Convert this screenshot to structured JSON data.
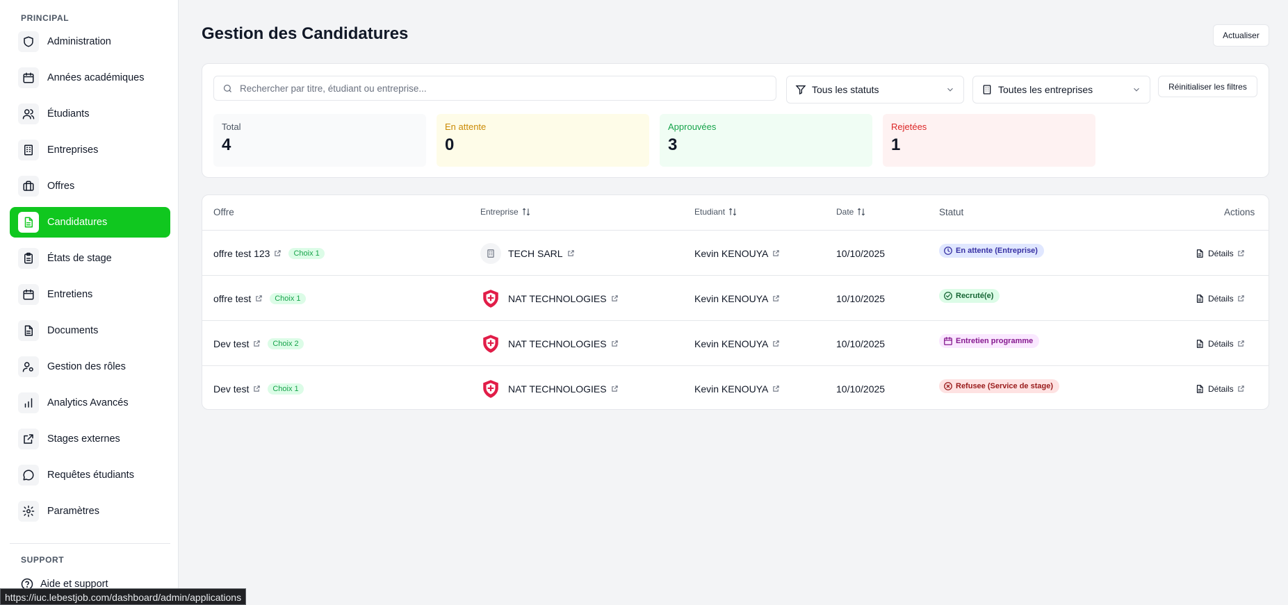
{
  "sidebar": {
    "principal_label": "PRINCIPAL",
    "items": [
      {
        "label": "Administration",
        "icon": "shield-icon",
        "active": false
      },
      {
        "label": "Années académiques",
        "icon": "calendar-icon",
        "active": false
      },
      {
        "label": "Étudiants",
        "icon": "users-icon",
        "active": false
      },
      {
        "label": "Entreprises",
        "icon": "building-icon",
        "active": false
      },
      {
        "label": "Offres",
        "icon": "briefcase-icon",
        "active": false
      },
      {
        "label": "Candidatures",
        "icon": "file-text-icon",
        "active": true
      },
      {
        "label": "États de stage",
        "icon": "clipboard-icon",
        "active": false
      },
      {
        "label": "Entretiens",
        "icon": "calendar-icon",
        "active": false
      },
      {
        "label": "Documents",
        "icon": "document-icon",
        "active": false
      },
      {
        "label": "Gestion des rôles",
        "icon": "user-cog-icon",
        "active": false
      },
      {
        "label": "Analytics Avancés",
        "icon": "bar-chart-icon",
        "active": false
      },
      {
        "label": "Stages externes",
        "icon": "external-link-icon",
        "active": false
      },
      {
        "label": "Requêtes étudiants",
        "icon": "message-circle-icon",
        "active": false
      },
      {
        "label": "Paramètres",
        "icon": "gear-icon",
        "active": false
      }
    ],
    "support_label": "SUPPORT",
    "support_item": "Aide et support"
  },
  "header": {
    "title": "Gestion des Candidatures",
    "refresh_label": "Actualiser"
  },
  "filters": {
    "search_placeholder": "Rechercher par titre, étudiant ou entreprise...",
    "status_select": "Tous les statuts",
    "company_select": "Toutes les entreprises",
    "reset_label": "Réinitialiser les filtres"
  },
  "stats": [
    {
      "label": "Total",
      "value": "4",
      "color": "#4b5563",
      "bg": "#f9fafb"
    },
    {
      "label": "En attente",
      "value": "0",
      "color": "#ca8a04",
      "bg": "#fefce8"
    },
    {
      "label": "Approuvées",
      "value": "3",
      "color": "#16a34a",
      "bg": "#f0fdf4"
    },
    {
      "label": "Rejetées",
      "value": "1",
      "color": "#dc2626",
      "bg": "#fef2f2"
    }
  ],
  "table": {
    "headers": {
      "offre": "Offre",
      "entreprise": "Entreprise",
      "etudiant": "Etudiant",
      "date": "Date",
      "statut": "Statut",
      "actions": "Actions"
    },
    "rows": [
      {
        "offre": "offre test 123",
        "choix": "Choix 1",
        "entreprise": "TECH SARL",
        "logo": "building-logo",
        "etudiant": "Kevin KENOUYA",
        "date": "10/10/2025",
        "statut": "En attente (Entreprise)",
        "statut_icon": "clock-icon",
        "statut_color": "#3730a3",
        "statut_bg": "#e0e7ff",
        "details": "Détails"
      },
      {
        "offre": "offre test",
        "choix": "Choix 1",
        "entreprise": "NAT TECHNOLOGIES",
        "logo": "shield-logo",
        "etudiant": "Kevin KENOUYA",
        "date": "10/10/2025",
        "statut": "Recruté(e)",
        "statut_icon": "check-circle-icon",
        "statut_color": "#166534",
        "statut_bg": "#dcfce7",
        "details": "Détails"
      },
      {
        "offre": "Dev test",
        "choix": "Choix 2",
        "entreprise": "NAT TECHNOLOGIES",
        "logo": "shield-logo",
        "etudiant": "Kevin KENOUYA",
        "date": "10/10/2025",
        "statut": "Entretien programme",
        "statut_icon": "calendar-icon",
        "statut_color": "#86198f",
        "statut_bg": "#fae8ff",
        "details": "Détails"
      },
      {
        "offre": "Dev test",
        "choix": "Choix 1",
        "entreprise": "NAT TECHNOLOGIES",
        "logo": "shield-logo",
        "etudiant": "Kevin KENOUYA",
        "date": "10/10/2025",
        "statut": "Refusee (Service de stage)",
        "statut_icon": "x-circle-icon",
        "statut_color": "#991b1b",
        "statut_bg": "#fee2e2",
        "details": "Détails"
      }
    ]
  },
  "browser_status_url": "https://iuc.lebestjob.com/dashboard/admin/applications"
}
